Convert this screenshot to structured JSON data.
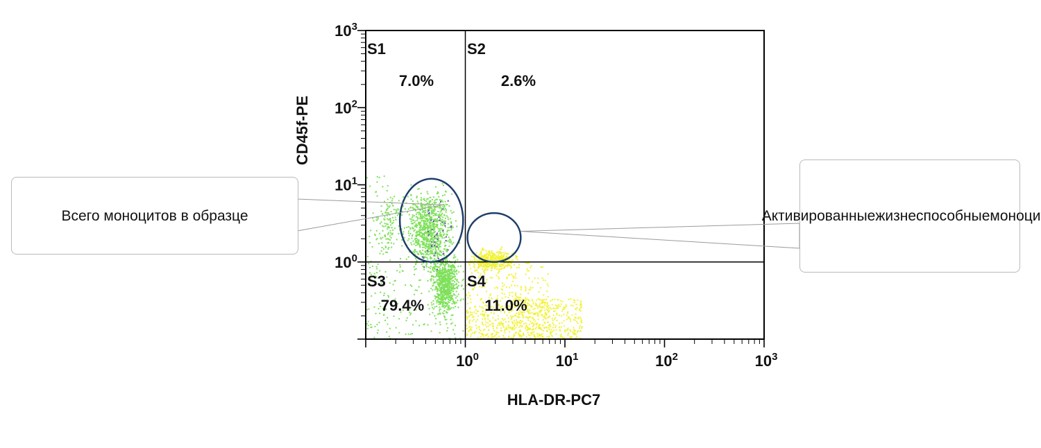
{
  "chart_data": {
    "type": "scatter",
    "title": "",
    "xlabel": "HLA-DR-PC7",
    "ylabel": "CD45f-PE",
    "xscale": "log",
    "yscale": "log",
    "xlim": [
      0.1,
      1000
    ],
    "ylim": [
      0.1,
      1000
    ],
    "x_ticks": [
      {
        "base": "10",
        "exp": "0",
        "value": 1
      },
      {
        "base": "10",
        "exp": "1",
        "value": 10
      },
      {
        "base": "10",
        "exp": "2",
        "value": 100
      },
      {
        "base": "10",
        "exp": "3",
        "value": 1000
      }
    ],
    "y_ticks": [
      {
        "base": "10",
        "exp": "0",
        "value": 1
      },
      {
        "base": "10",
        "exp": "1",
        "value": 10
      },
      {
        "base": "10",
        "exp": "2",
        "value": 100
      },
      {
        "base": "10",
        "exp": "3",
        "value": 1000
      }
    ],
    "quadrant_gate": {
      "x": 1,
      "y": 1
    },
    "quadrants": [
      {
        "id": "S1",
        "label": "S1",
        "percent": "7.0%"
      },
      {
        "id": "S2",
        "label": "S2",
        "percent": "2.6%"
      },
      {
        "id": "S3",
        "label": "S3",
        "percent": "79.4%"
      },
      {
        "id": "S4",
        "label": "S4",
        "percent": "11.0%"
      }
    ],
    "populations": [
      {
        "color": "#7ee05a",
        "region": {
          "x": [
            0.1,
            1.0
          ],
          "y": [
            0.1,
            10
          ]
        }
      },
      {
        "color": "#f2f23a",
        "region": {
          "x": [
            1.0,
            15
          ],
          "y": [
            0.1,
            2
          ]
        }
      }
    ],
    "gates": [
      {
        "shape": "ellipse",
        "center": [
          0.45,
          3.5
        ],
        "x_range": [
          0.22,
          0.95
        ],
        "y_range": [
          1.0,
          12
        ]
      },
      {
        "shape": "ellipse",
        "center": [
          2.0,
          2.1
        ],
        "x_range": [
          1.05,
          3.6
        ],
        "y_range": [
          1.0,
          4.3
        ]
      }
    ],
    "annotations": [
      {
        "text": [
          "Всего моноцитов в образце"
        ],
        "points_to": [
          0.6,
          5.5
        ]
      },
      {
        "text": [
          "Активированные",
          "жизнеспособные",
          "моноциты"
        ],
        "points_to": [
          3.6,
          2.5
        ]
      }
    ],
    "grid": false,
    "legend": "none"
  },
  "colors": {
    "axis": "#000000",
    "gate_ellipse": "#1d3f6b",
    "green_events": "#7ee05a",
    "yellow_events": "#f2f23a",
    "purple_events": "#6a4fb5"
  }
}
